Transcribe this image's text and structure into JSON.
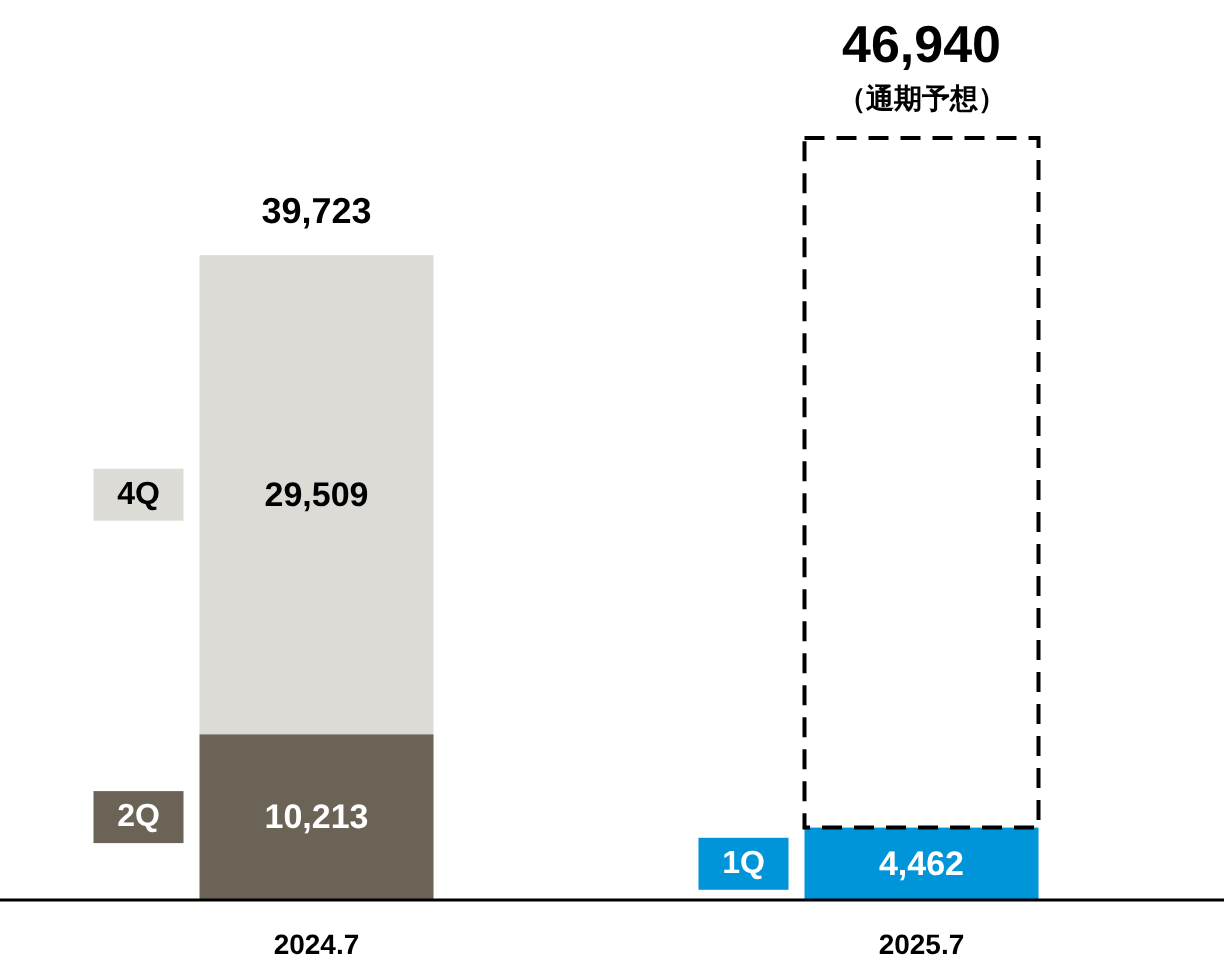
{
  "chart_data": {
    "type": "bar",
    "stacked": true,
    "categories": [
      "2024.7",
      "2025.7"
    ],
    "tick_labels": "x",
    "series": [
      {
        "name": "2Q",
        "color": "#6b6355",
        "values": [
          10213,
          null
        ],
        "value_labels": [
          "10,213",
          null
        ]
      },
      {
        "name": "4Q",
        "color": "#dcdbd6",
        "values": [
          29509,
          null
        ],
        "value_labels": [
          "29,509",
          null
        ]
      },
      {
        "name": "1Q",
        "color": "#0095d9",
        "values": [
          null,
          4462
        ],
        "value_labels": [
          null,
          "4,462"
        ]
      },
      {
        "color": "#000000",
        "line_style": "dashed",
        "values": [
          null,
          42478
        ]
      }
    ],
    "totals": [
      "39,723",
      "46,940"
    ],
    "annotations": [
      "（通期予想）"
    ]
  }
}
